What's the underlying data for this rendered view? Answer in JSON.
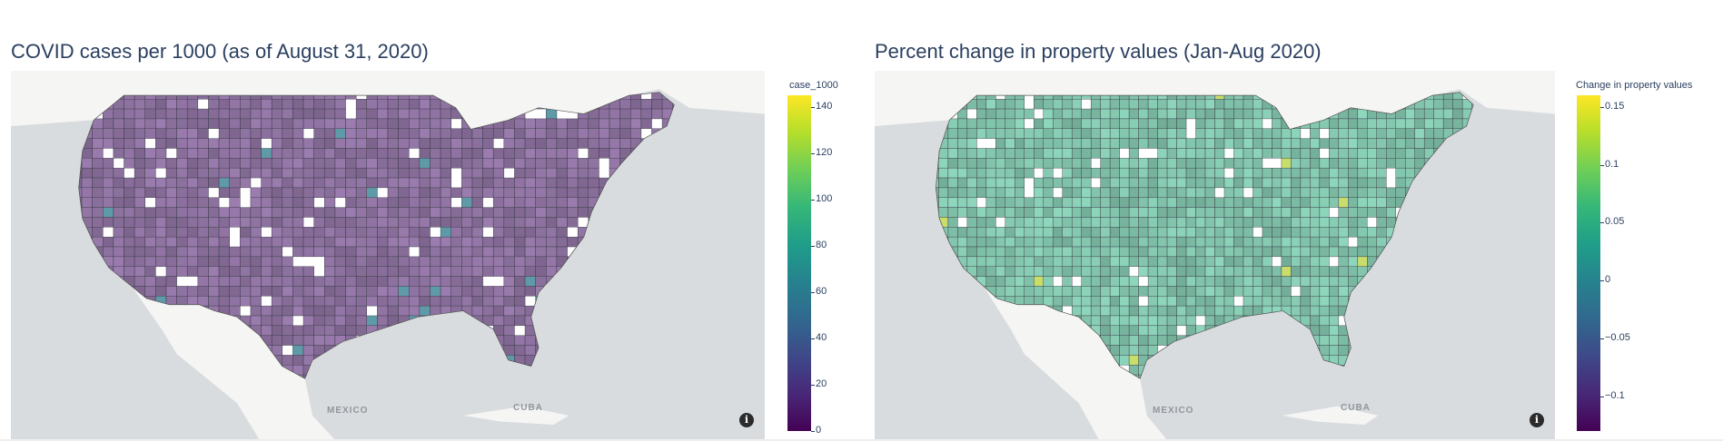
{
  "panels": [
    {
      "title": "COVID cases per 1000 (as of August 31, 2020)",
      "colorbar": {
        "title": "case_1000",
        "ticks": [
          "0",
          "20",
          "40",
          "60",
          "80",
          "100",
          "120",
          "140"
        ],
        "tick_values": [
          0,
          20,
          40,
          60,
          80,
          100,
          120,
          140
        ],
        "range": [
          0,
          145
        ]
      },
      "fill_color": "#8a6f9c",
      "colorscale": "Viridis"
    },
    {
      "title": "Percent change in property values (Jan-Aug 2020)",
      "colorbar": {
        "title": "Change in property values",
        "ticks": [
          "0.15",
          "0.1",
          "0.05",
          "0",
          "−0.05",
          "−0.1"
        ],
        "tick_values": [
          0.15,
          0.1,
          0.05,
          0,
          -0.05,
          -0.1
        ],
        "range": [
          -0.13,
          0.16
        ]
      },
      "fill_color": "#7fc0a8",
      "colorscale": "Viridis"
    }
  ],
  "map_labels": {
    "mexico": "MEXICO",
    "cuba": "CUBA"
  },
  "info_icon": "info-icon",
  "colors": {
    "ocean": "#d9dcdf",
    "land": "#f5f5f3",
    "title": "#2a3f5f",
    "viridis": [
      "#440154",
      "#482878",
      "#3e4989",
      "#31688e",
      "#26828e",
      "#1f9e89",
      "#35b779",
      "#6ece58",
      "#b5de2b",
      "#fde725"
    ]
  }
}
